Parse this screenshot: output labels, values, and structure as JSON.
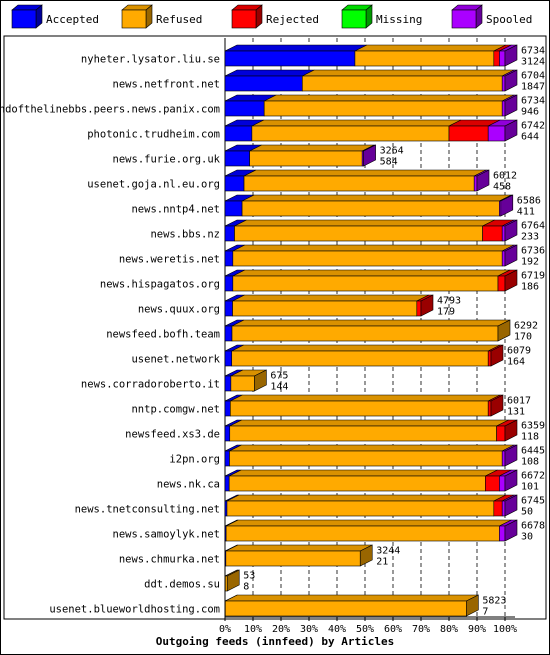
{
  "chart_data": {
    "type": "bar",
    "orientation": "horizontal",
    "stacked": true,
    "style": "3d",
    "title": "Outgoing feeds (innfeed) by Articles",
    "xlim": [
      0,
      100
    ],
    "x_tick_labels": [
      "0%",
      "10%",
      "20%",
      "30%",
      "40%",
      "50%",
      "60%",
      "70%",
      "80%",
      "90%",
      "100%"
    ],
    "legend_position": "top",
    "series": [
      {
        "name": "Accepted",
        "color": "#0000ff"
      },
      {
        "name": "Refused",
        "color": "#ffaa00"
      },
      {
        "name": "Rejected",
        "color": "#ff0000"
      },
      {
        "name": "Missing",
        "color": "#00ff00"
      },
      {
        "name": "Spooled",
        "color": "#aa00ff"
      }
    ],
    "categories": [
      "nyheter.lysator.liu.se",
      "news.netfront.net",
      "endofthelinebbs.peers.news.panix.com",
      "photonic.trudheim.com",
      "news.furie.org.uk",
      "usenet.goja.nl.eu.org",
      "news.nntp4.net",
      "news.bbs.nz",
      "news.weretis.net",
      "news.hispagatos.org",
      "news.quux.org",
      "newsfeed.bofh.team",
      "usenet.network",
      "news.corradoroberto.it",
      "nntp.comgw.net",
      "newsfeed.xs3.de",
      "i2pn.org",
      "news.nk.ca",
      "news.tnetconsulting.net",
      "news.samoylyk.net",
      "news.chmurka.net",
      "ddt.demos.su",
      "usenet.blueworldhosting.com"
    ],
    "rows": [
      {
        "total": "6734",
        "accepted": "3124",
        "segments": [
          46.4,
          49.6,
          2.0,
          0,
          2.0
        ]
      },
      {
        "total": "6704",
        "accepted": "1847",
        "segments": [
          27.6,
          71.4,
          0,
          0,
          1.0
        ]
      },
      {
        "total": "6734",
        "accepted": "946",
        "segments": [
          14.0,
          85.0,
          0,
          0,
          1.0
        ]
      },
      {
        "total": "6742",
        "accepted": "644",
        "segments": [
          9.6,
          70.4,
          14.0,
          0,
          6.0
        ]
      },
      {
        "total": "3264",
        "accepted": "584",
        "segments": [
          8.8,
          40.2,
          0,
          0,
          0.5
        ]
      },
      {
        "total": "6012",
        "accepted": "458",
        "segments": [
          6.8,
          82.2,
          0,
          0,
          1.0
        ]
      },
      {
        "total": "6586",
        "accepted": "411",
        "segments": [
          6.1,
          91.9,
          0,
          0,
          0.5
        ]
      },
      {
        "total": "6764",
        "accepted": "233",
        "segments": [
          3.4,
          88.6,
          7.0,
          0,
          1.0
        ]
      },
      {
        "total": "6736",
        "accepted": "192",
        "segments": [
          2.8,
          96.2,
          0,
          0,
          1.0
        ]
      },
      {
        "total": "6719",
        "accepted": "186",
        "segments": [
          2.8,
          94.7,
          2.5,
          0,
          0
        ]
      },
      {
        "total": "4793",
        "accepted": "179",
        "segments": [
          2.7,
          65.8,
          1.5,
          0,
          0
        ]
      },
      {
        "total": "6292",
        "accepted": "170",
        "segments": [
          2.5,
          95.0,
          0,
          0,
          0
        ]
      },
      {
        "total": "6079",
        "accepted": "164",
        "segments": [
          2.4,
          91.6,
          1.0,
          0,
          0
        ]
      },
      {
        "total": "675",
        "accepted": "144",
        "segments": [
          2.1,
          8.4,
          0,
          0,
          0
        ]
      },
      {
        "total": "6017",
        "accepted": "131",
        "segments": [
          1.9,
          92.1,
          1.0,
          0,
          0
        ]
      },
      {
        "total": "6359",
        "accepted": "118",
        "segments": [
          1.7,
          95.3,
          3.0,
          0,
          0
        ]
      },
      {
        "total": "6445",
        "accepted": "108",
        "segments": [
          1.6,
          97.4,
          0,
          0,
          1.0
        ]
      },
      {
        "total": "6672",
        "accepted": "101",
        "segments": [
          1.5,
          91.5,
          5.0,
          0,
          2.0
        ]
      },
      {
        "total": "6745",
        "accepted": "50",
        "segments": [
          0.7,
          95.3,
          3.0,
          0,
          1.0
        ]
      },
      {
        "total": "6678",
        "accepted": "30",
        "segments": [
          0.4,
          97.6,
          0,
          0,
          2.0
        ]
      },
      {
        "total": "3244",
        "accepted": "21",
        "segments": [
          0.3,
          48.0,
          0,
          0,
          0
        ]
      },
      {
        "total": "53",
        "accepted": "8",
        "segments": [
          0.1,
          0.7,
          0,
          0,
          0
        ]
      },
      {
        "total": "5823",
        "accepted": "7",
        "segments": [
          0.1,
          86.1,
          0,
          0,
          0
        ]
      }
    ]
  }
}
